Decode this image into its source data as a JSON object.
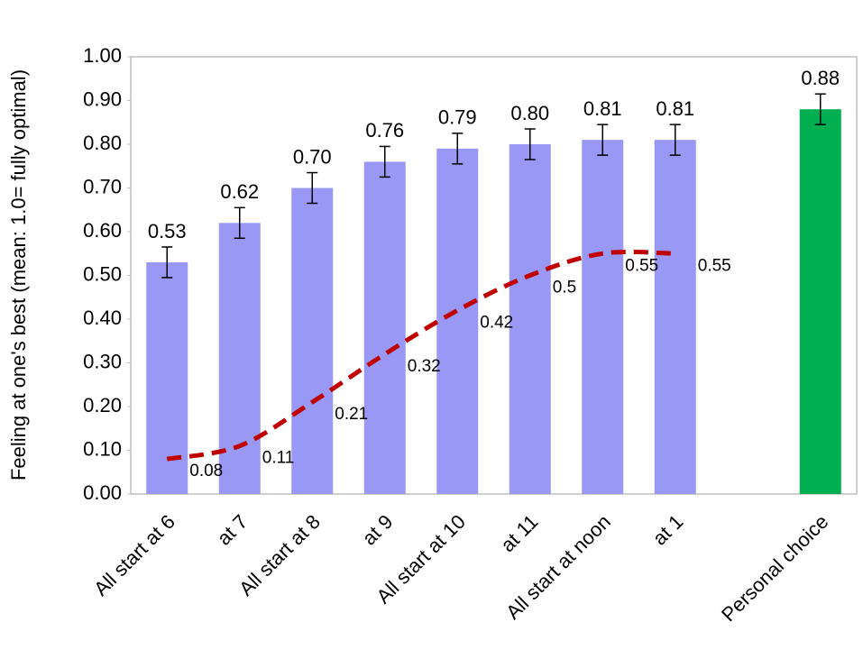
{
  "chart_data": {
    "type": "bar",
    "y_label": "Feeling at one's best (mean: 1.0= fully optimal)",
    "categories": [
      "All start at 6",
      "at 7",
      "All start at 8",
      "at 9",
      "All start at 10",
      "at 11",
      "All start at noon",
      "at 1",
      null,
      "Personal choice"
    ],
    "values": [
      0.53,
      0.62,
      0.7,
      0.76,
      0.79,
      0.8,
      0.81,
      0.81,
      null,
      0.88
    ],
    "value_labels": [
      "0.53",
      "0.62",
      "0.70",
      "0.76",
      "0.79",
      "0.80",
      "0.81",
      "0.81",
      null,
      "0.88"
    ],
    "errors": [
      0.035,
      0.035,
      0.035,
      0.035,
      0.035,
      0.035,
      0.035,
      0.035,
      null,
      0.035
    ],
    "colors": [
      "#9999f5",
      "#9999f5",
      "#9999f5",
      "#9999f5",
      "#9999f5",
      "#9999f5",
      "#9999f5",
      "#9999f5",
      null,
      "#00b050"
    ],
    "line": {
      "color": "#c00000",
      "values": [
        0.08,
        0.11,
        0.21,
        0.32,
        0.42,
        0.5,
        0.55,
        0.55,
        null,
        null
      ]
    },
    "ylim": [
      0,
      1
    ],
    "yticks": [
      {
        "value": 0,
        "label": "0.00"
      },
      {
        "value": 0.1,
        "label": "0.10"
      },
      {
        "value": 0.2,
        "label": "0.20"
      },
      {
        "value": 0.3,
        "label": "0.30"
      },
      {
        "value": 0.4,
        "label": "0.40"
      },
      {
        "value": 0.5,
        "label": "0.50"
      },
      {
        "value": 0.6,
        "label": "0.60"
      },
      {
        "value": 0.7,
        "label": "0.70"
      },
      {
        "value": 0.8,
        "label": "0.80"
      },
      {
        "value": 0.9,
        "label": "0.90"
      },
      {
        "value": 1,
        "label": "1.00"
      }
    ],
    "grid": false
  }
}
